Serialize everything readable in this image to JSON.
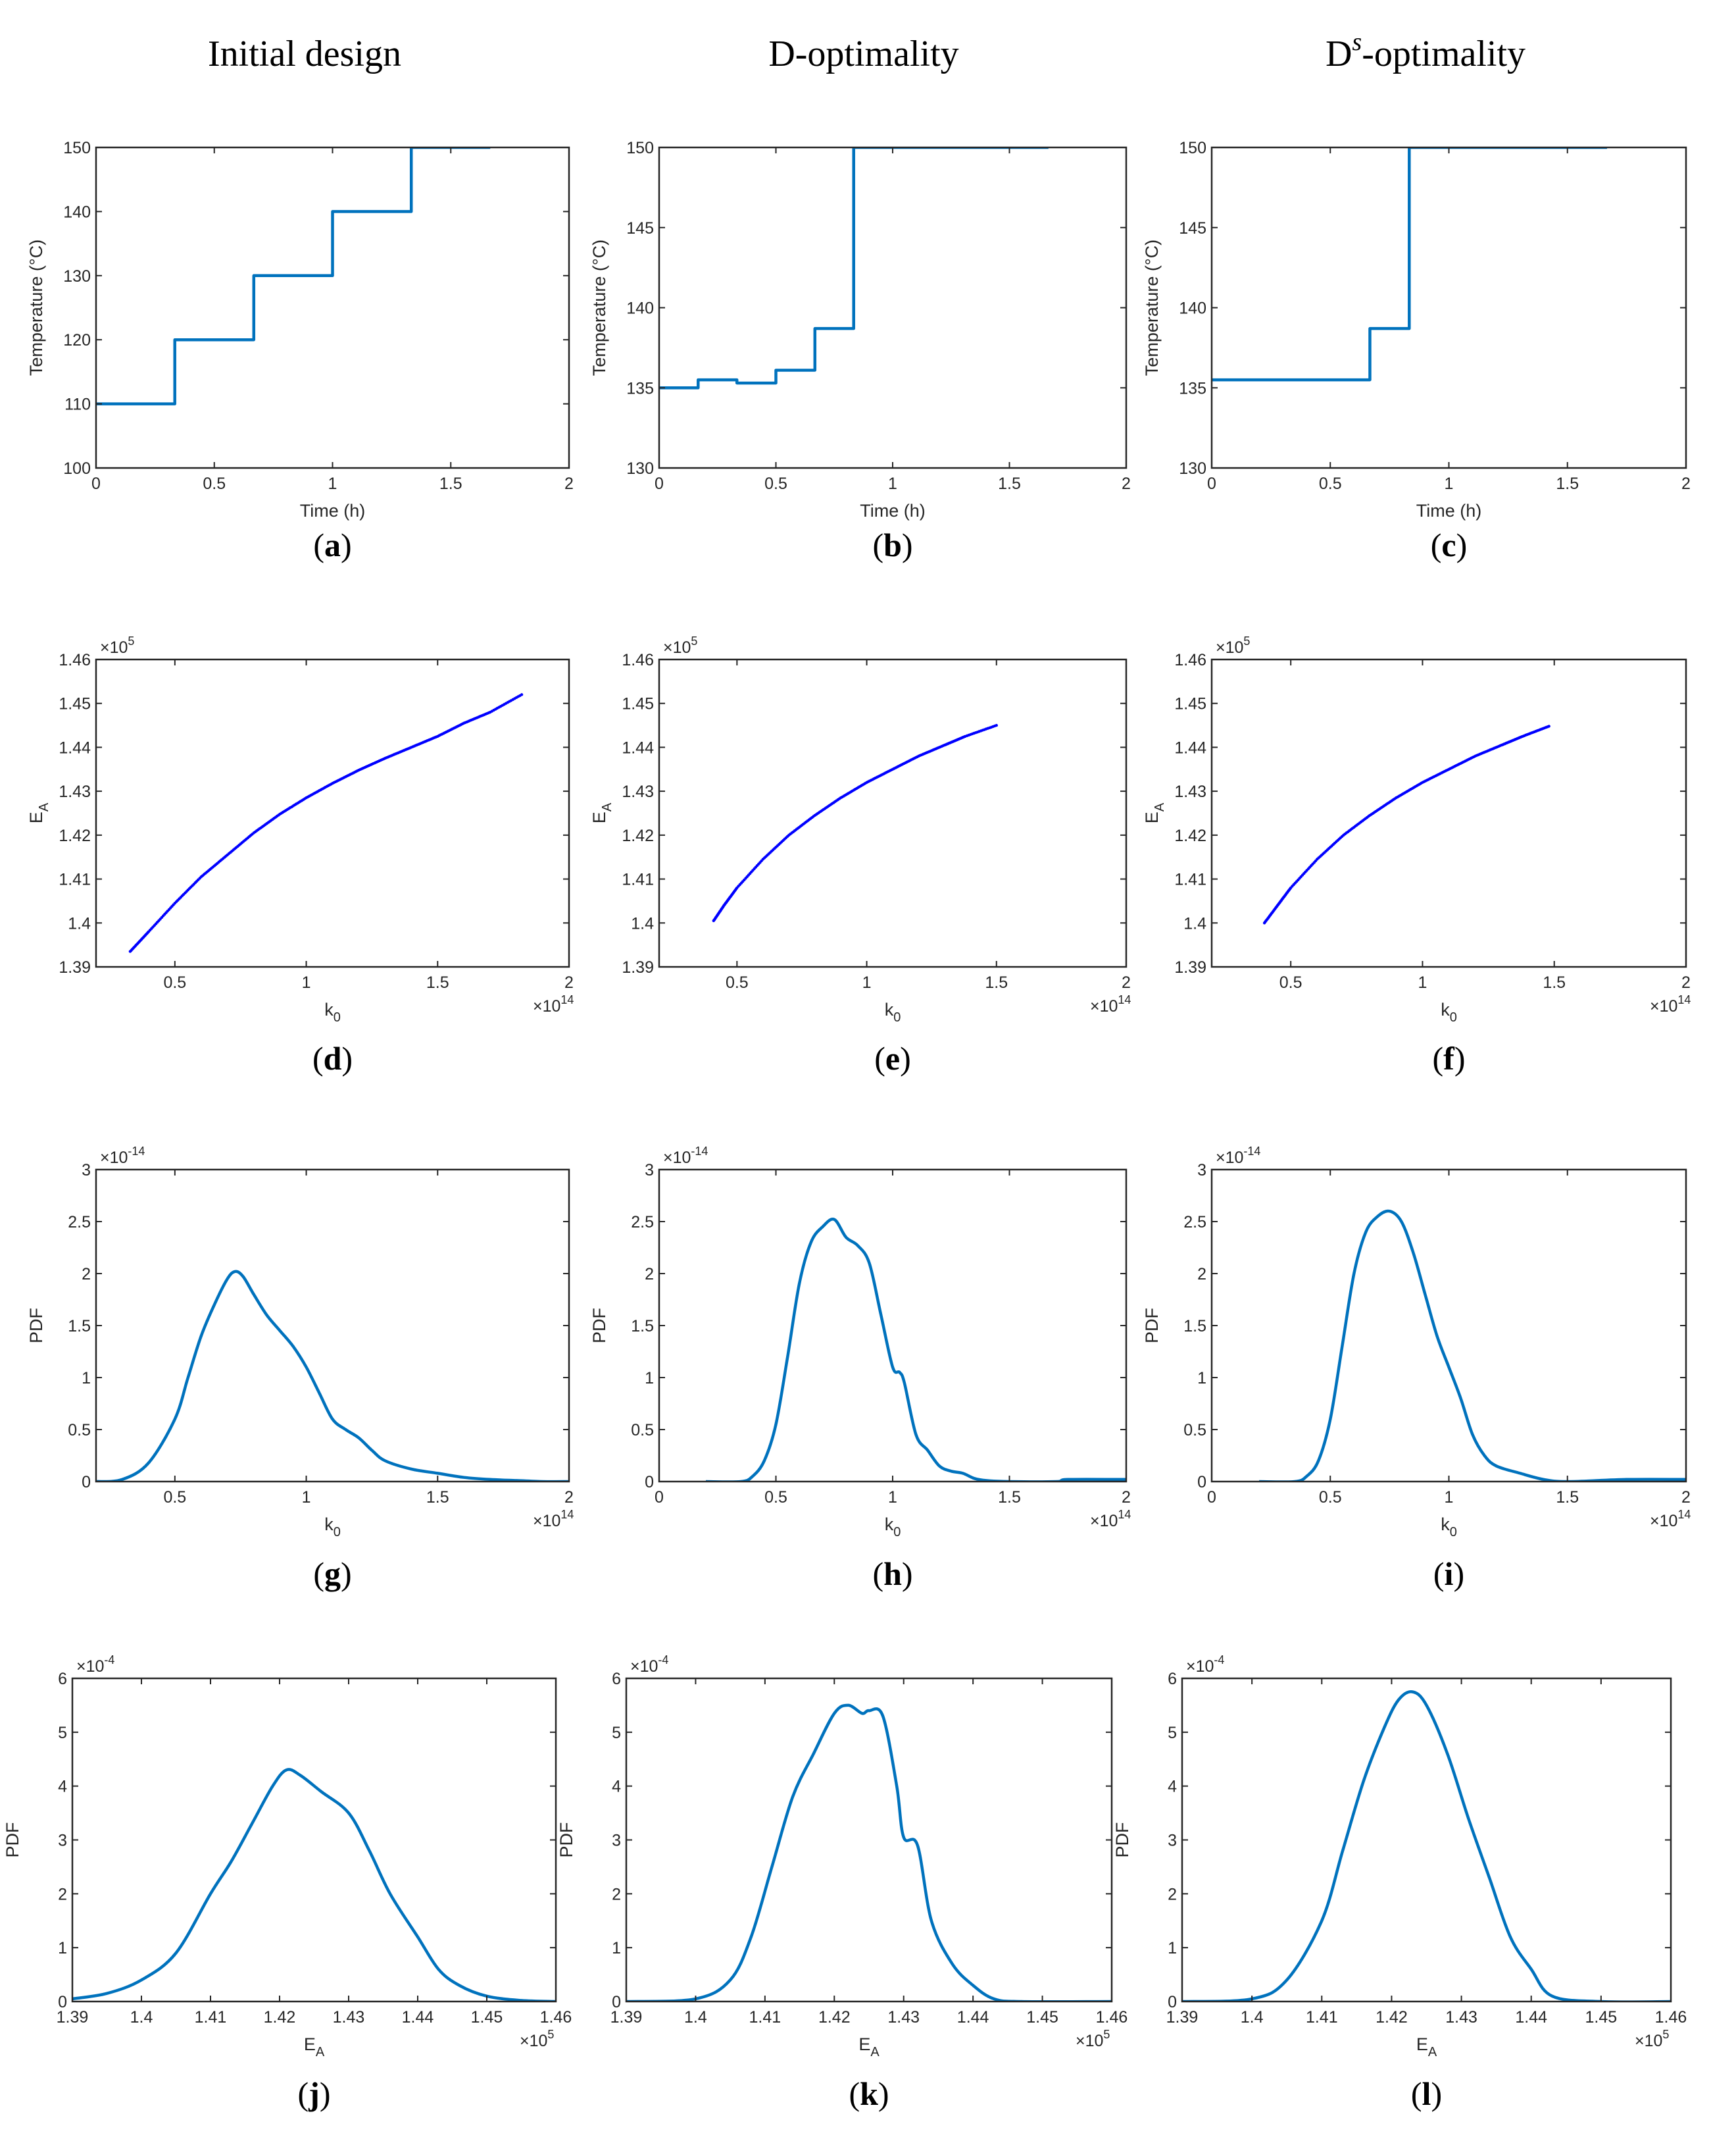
{
  "column_titles": [
    {
      "text": "Initial design"
    },
    {
      "text": "D-optimality"
    },
    {
      "base": "D",
      "sup": "s",
      "rest": "-optimality"
    }
  ],
  "colors": {
    "line": "#0072BD",
    "scatter": "#0000FF",
    "axis": "#262626"
  },
  "chart_data": [
    {
      "id": "a",
      "label": "(a)",
      "label_letter": "a",
      "type": "line",
      "step": true,
      "xlabel": "Time (h)",
      "ylabel": "Temperature (°C)",
      "xlim": [
        0,
        2
      ],
      "ylim": [
        100,
        150
      ],
      "xticks": [
        "0",
        "0.5",
        "1",
        "1.5",
        "2"
      ],
      "xticks_v": [
        0,
        0.5,
        1,
        1.5,
        2
      ],
      "yticks": [
        "100",
        "110",
        "120",
        "130",
        "140",
        "150"
      ],
      "yticks_v": [
        100,
        110,
        120,
        130,
        140,
        150
      ],
      "x": [
        0,
        0.333,
        0.667,
        1.0,
        1.333,
        1.667
      ],
      "y": [
        110,
        120,
        130,
        140,
        150,
        150
      ]
    },
    {
      "id": "b",
      "label": "(b)",
      "label_letter": "b",
      "type": "line",
      "step": true,
      "xlabel": "Time (h)",
      "ylabel": "Temperature (°C)",
      "xlim": [
        0,
        2
      ],
      "ylim": [
        130,
        150
      ],
      "xticks": [
        "0",
        "0.5",
        "1",
        "1.5",
        "2"
      ],
      "xticks_v": [
        0,
        0.5,
        1,
        1.5,
        2
      ],
      "yticks": [
        "130",
        "135",
        "140",
        "145",
        "150"
      ],
      "yticks_v": [
        130,
        135,
        140,
        145,
        150
      ],
      "x": [
        0,
        0.167,
        0.333,
        0.5,
        0.667,
        0.833,
        1.667
      ],
      "y": [
        135,
        135.5,
        135.3,
        136.1,
        138.7,
        150,
        150
      ]
    },
    {
      "id": "c",
      "label": "(c)",
      "label_letter": "c",
      "type": "line",
      "step": true,
      "xlabel": "Time (h)",
      "ylabel": "Temperature (°C)",
      "xlim": [
        0,
        2
      ],
      "ylim": [
        130,
        150
      ],
      "xticks": [
        "0",
        "0.5",
        "1",
        "1.5",
        "2"
      ],
      "xticks_v": [
        0,
        0.5,
        1,
        1.5,
        2
      ],
      "yticks": [
        "130",
        "135",
        "140",
        "145",
        "150"
      ],
      "yticks_v": [
        130,
        135,
        140,
        145,
        150
      ],
      "x": [
        0,
        0.667,
        0.833,
        1.667
      ],
      "y": [
        135.5,
        138.7,
        150,
        150
      ]
    },
    {
      "id": "d",
      "label": "(d)",
      "label_letter": "d",
      "type": "scatter",
      "xlabel": "k",
      "xlabel_sub": "0",
      "ylabel": "E",
      "ylabel_sub": "A",
      "xlim": [
        0.2,
        2
      ],
      "ylim": [
        1.39,
        1.46
      ],
      "xticks": [
        "0.5",
        "1",
        "1.5",
        "2"
      ],
      "xticks_v": [
        0.5,
        1,
        1.5,
        2
      ],
      "yticks": [
        "1.39",
        "1.4",
        "1.41",
        "1.42",
        "1.43",
        "1.44",
        "1.45",
        "1.46"
      ],
      "yticks_v": [
        1.39,
        1.4,
        1.41,
        1.42,
        1.43,
        1.44,
        1.45,
        1.46
      ],
      "y_mult": "5",
      "x_mult": "14",
      "x": [
        0.33,
        0.4,
        0.5,
        0.6,
        0.7,
        0.8,
        0.9,
        1.0,
        1.1,
        1.2,
        1.3,
        1.4,
        1.5,
        1.6,
        1.7,
        1.82
      ],
      "y": [
        1.3935,
        1.398,
        1.4045,
        1.4105,
        1.4155,
        1.4205,
        1.4248,
        1.4285,
        1.4318,
        1.4348,
        1.4375,
        1.44,
        1.4425,
        1.4455,
        1.448,
        1.452
      ]
    },
    {
      "id": "e",
      "label": "(e)",
      "label_letter": "e",
      "type": "scatter",
      "xlabel": "k",
      "xlabel_sub": "0",
      "ylabel": "E",
      "ylabel_sub": "A",
      "xlim": [
        0.2,
        2
      ],
      "ylim": [
        1.39,
        1.46
      ],
      "xticks": [
        "0.5",
        "1",
        "1.5",
        "2"
      ],
      "xticks_v": [
        0.5,
        1,
        1.5,
        2
      ],
      "yticks": [
        "1.39",
        "1.4",
        "1.41",
        "1.42",
        "1.43",
        "1.44",
        "1.45",
        "1.46"
      ],
      "yticks_v": [
        1.39,
        1.4,
        1.41,
        1.42,
        1.43,
        1.44,
        1.45,
        1.46
      ],
      "y_mult": "5",
      "x_mult": "14",
      "x": [
        0.41,
        0.45,
        0.5,
        0.6,
        0.7,
        0.8,
        0.9,
        1.0,
        1.1,
        1.2,
        1.3,
        1.38,
        1.5
      ],
      "y": [
        1.4005,
        1.404,
        1.408,
        1.4145,
        1.42,
        1.4245,
        1.4285,
        1.432,
        1.435,
        1.438,
        1.4405,
        1.4425,
        1.445
      ]
    },
    {
      "id": "f",
      "label": "(f)",
      "label_letter": "f",
      "type": "scatter",
      "xlabel": "k",
      "xlabel_sub": "0",
      "ylabel": "E",
      "ylabel_sub": "A",
      "xlim": [
        0.2,
        2
      ],
      "ylim": [
        1.39,
        1.46
      ],
      "xticks": [
        "0.5",
        "1",
        "1.5",
        "2"
      ],
      "xticks_v": [
        0.5,
        1,
        1.5,
        2
      ],
      "yticks": [
        "1.39",
        "1.4",
        "1.41",
        "1.42",
        "1.43",
        "1.44",
        "1.45",
        "1.46"
      ],
      "yticks_v": [
        1.39,
        1.4,
        1.41,
        1.42,
        1.43,
        1.44,
        1.45,
        1.46
      ],
      "y_mult": "5",
      "x_mult": "14",
      "x": [
        0.4,
        0.45,
        0.5,
        0.6,
        0.7,
        0.8,
        0.9,
        1.0,
        1.1,
        1.2,
        1.3,
        1.38,
        1.48
      ],
      "y": [
        1.4,
        1.404,
        1.408,
        1.4145,
        1.42,
        1.4245,
        1.4285,
        1.432,
        1.435,
        1.438,
        1.4405,
        1.4425,
        1.4448
      ]
    },
    {
      "id": "g",
      "label": "(g)",
      "label_letter": "g",
      "type": "line",
      "step": false,
      "xlabel": "k",
      "xlabel_sub": "0",
      "ylabel": "PDF",
      "xlim": [
        0.2,
        2
      ],
      "ylim": [
        0,
        3
      ],
      "xticks": [
        "0.5",
        "1",
        "1.5",
        "2"
      ],
      "xticks_v": [
        0.5,
        1,
        1.5,
        2
      ],
      "yticks": [
        "0",
        "0.5",
        "1",
        "1.5",
        "2",
        "2.5",
        "3"
      ],
      "yticks_v": [
        0,
        0.5,
        1,
        1.5,
        2,
        2.5,
        3
      ],
      "y_mult": "-14",
      "x_mult": "14",
      "x": [
        0.2,
        0.3,
        0.4,
        0.5,
        0.55,
        0.6,
        0.65,
        0.7,
        0.73,
        0.76,
        0.8,
        0.85,
        0.9,
        0.95,
        1.0,
        1.05,
        1.1,
        1.15,
        1.2,
        1.25,
        1.3,
        1.4,
        1.5,
        1.6,
        1.7,
        1.8,
        1.9,
        2.0
      ],
      "y": [
        0,
        0.02,
        0.18,
        0.6,
        1.0,
        1.4,
        1.7,
        1.95,
        2.02,
        1.97,
        1.8,
        1.6,
        1.45,
        1.3,
        1.1,
        0.85,
        0.6,
        0.5,
        0.42,
        0.3,
        0.2,
        0.12,
        0.08,
        0.04,
        0.02,
        0.01,
        0.0,
        0.0
      ]
    },
    {
      "id": "h",
      "label": "(h)",
      "label_letter": "h",
      "type": "line",
      "step": false,
      "xlabel": "k",
      "xlabel_sub": "0",
      "ylabel": "PDF",
      "xlim": [
        0,
        2
      ],
      "ylim": [
        0,
        3
      ],
      "xticks": [
        "0",
        "0.5",
        "1",
        "1.5",
        "2"
      ],
      "xticks_v": [
        0,
        0.5,
        1,
        1.5,
        2
      ],
      "yticks": [
        "0",
        "0.5",
        "1",
        "1.5",
        "2",
        "2.5",
        "3"
      ],
      "yticks_v": [
        0,
        0.5,
        1,
        1.5,
        2,
        2.5,
        3
      ],
      "y_mult": "-14",
      "x_mult": "14",
      "x": [
        0.2,
        0.35,
        0.4,
        0.45,
        0.5,
        0.55,
        0.6,
        0.65,
        0.7,
        0.75,
        0.8,
        0.85,
        0.9,
        0.95,
        1.0,
        1.03,
        1.05,
        1.1,
        1.15,
        1.2,
        1.25,
        1.3,
        1.35,
        1.4,
        1.5,
        1.7,
        1.75,
        2.0
      ],
      "y": [
        0,
        0.0,
        0.05,
        0.2,
        0.55,
        1.2,
        1.9,
        2.3,
        2.45,
        2.52,
        2.35,
        2.27,
        2.1,
        1.6,
        1.1,
        1.05,
        0.95,
        0.45,
        0.3,
        0.15,
        0.1,
        0.08,
        0.03,
        0.01,
        0.0,
        0.0,
        0.02,
        0.02
      ]
    },
    {
      "id": "i",
      "label": "(i)",
      "label_letter": "i",
      "type": "line",
      "step": false,
      "xlabel": "k",
      "xlabel_sub": "0",
      "ylabel": "PDF",
      "xlim": [
        0,
        2
      ],
      "ylim": [
        0,
        3
      ],
      "xticks": [
        "0",
        "0.5",
        "1",
        "1.5",
        "2"
      ],
      "xticks_v": [
        0,
        0.5,
        1,
        1.5,
        2
      ],
      "yticks": [
        "0",
        "0.5",
        "1",
        "1.5",
        "2",
        "2.5",
        "3"
      ],
      "yticks_v": [
        0,
        0.5,
        1,
        1.5,
        2,
        2.5,
        3
      ],
      "y_mult": "-14",
      "x_mult": "14",
      "x": [
        0.2,
        0.35,
        0.4,
        0.45,
        0.5,
        0.55,
        0.6,
        0.65,
        0.7,
        0.75,
        0.8,
        0.85,
        0.9,
        0.95,
        1.0,
        1.05,
        1.1,
        1.15,
        1.2,
        1.3,
        1.4,
        1.5,
        1.75,
        2.0
      ],
      "y": [
        0,
        0.0,
        0.05,
        0.2,
        0.6,
        1.3,
        2.0,
        2.4,
        2.55,
        2.6,
        2.5,
        2.2,
        1.8,
        1.4,
        1.1,
        0.8,
        0.45,
        0.25,
        0.15,
        0.08,
        0.02,
        0.0,
        0.02,
        0.02
      ]
    },
    {
      "id": "j",
      "label": "(j)",
      "label_letter": "j",
      "type": "line",
      "step": false,
      "xlabel": "E",
      "xlabel_sub": "A",
      "ylabel": "PDF",
      "xlim": [
        1.39,
        1.46
      ],
      "ylim": [
        0,
        6
      ],
      "xticks": [
        "1.39",
        "1.4",
        "1.41",
        "1.42",
        "1.43",
        "1.44",
        "1.45",
        "1.46"
      ],
      "xticks_v": [
        1.39,
        1.4,
        1.41,
        1.42,
        1.43,
        1.44,
        1.45,
        1.46
      ],
      "yticks": [
        "0",
        "1",
        "2",
        "3",
        "4",
        "5",
        "6"
      ],
      "yticks_v": [
        0,
        1,
        2,
        3,
        4,
        5,
        6
      ],
      "y_mult": "-4",
      "x_mult": "5",
      "x": [
        1.39,
        1.395,
        1.4,
        1.405,
        1.41,
        1.413,
        1.416,
        1.419,
        1.421,
        1.423,
        1.426,
        1.43,
        1.433,
        1.436,
        1.44,
        1.443,
        1.446,
        1.45,
        1.455,
        1.46
      ],
      "y": [
        0.05,
        0.15,
        0.4,
        0.9,
        2.0,
        2.6,
        3.3,
        4.0,
        4.3,
        4.2,
        3.9,
        3.5,
        2.8,
        2.0,
        1.2,
        0.6,
        0.3,
        0.1,
        0.02,
        0.0
      ]
    },
    {
      "id": "k",
      "label": "(k)",
      "label_letter": "k",
      "type": "line",
      "step": false,
      "xlabel": "E",
      "xlabel_sub": "A",
      "ylabel": "PDF",
      "xlim": [
        1.39,
        1.46
      ],
      "ylim": [
        0,
        6
      ],
      "xticks": [
        "1.39",
        "1.4",
        "1.41",
        "1.42",
        "1.43",
        "1.44",
        "1.45",
        "1.46"
      ],
      "xticks_v": [
        1.39,
        1.4,
        1.41,
        1.42,
        1.43,
        1.44,
        1.45,
        1.46
      ],
      "yticks": [
        "0",
        "1",
        "2",
        "3",
        "4",
        "5",
        "6"
      ],
      "yticks_v": [
        0,
        1,
        2,
        3,
        4,
        5,
        6
      ],
      "y_mult": "-4",
      "x_mult": "5",
      "x": [
        1.39,
        1.4,
        1.405,
        1.408,
        1.411,
        1.414,
        1.417,
        1.42,
        1.422,
        1.424,
        1.425,
        1.427,
        1.429,
        1.43,
        1.432,
        1.434,
        1.437,
        1.44,
        1.443,
        1.447,
        1.46
      ],
      "y": [
        0,
        0.05,
        0.4,
        1.2,
        2.5,
        3.8,
        4.6,
        5.35,
        5.5,
        5.35,
        5.4,
        5.3,
        4.0,
        3.05,
        2.9,
        1.5,
        0.7,
        0.3,
        0.05,
        0.0,
        0.0
      ]
    },
    {
      "id": "l",
      "label": "(l)",
      "label_letter": "l",
      "type": "line",
      "step": false,
      "xlabel": "E",
      "xlabel_sub": "A",
      "ylabel": "PDF",
      "xlim": [
        1.39,
        1.46
      ],
      "ylim": [
        0,
        6
      ],
      "xticks": [
        "1.39",
        "1.4",
        "1.41",
        "1.42",
        "1.43",
        "1.44",
        "1.45",
        "1.46"
      ],
      "xticks_v": [
        1.39,
        1.4,
        1.41,
        1.42,
        1.43,
        1.44,
        1.45,
        1.46
      ],
      "yticks": [
        "0",
        "1",
        "2",
        "3",
        "4",
        "5",
        "6"
      ],
      "yticks_v": [
        0,
        1,
        2,
        3,
        4,
        5,
        6
      ],
      "y_mult": "-4",
      "x_mult": "5",
      "x": [
        1.39,
        1.4,
        1.405,
        1.41,
        1.413,
        1.416,
        1.419,
        1.421,
        1.423,
        1.425,
        1.428,
        1.431,
        1.434,
        1.437,
        1.44,
        1.443,
        1.45,
        1.46
      ],
      "y": [
        0,
        0.05,
        0.4,
        1.5,
        2.8,
        4.1,
        5.1,
        5.6,
        5.75,
        5.5,
        4.6,
        3.4,
        2.3,
        1.2,
        0.6,
        0.1,
        0.0,
        0.0
      ]
    }
  ]
}
